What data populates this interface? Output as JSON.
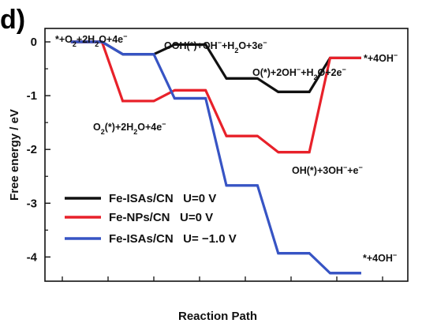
{
  "panel_label": "d)",
  "colors": {
    "black": "#111111",
    "red": "#e8212a",
    "blue": "#3754c4"
  },
  "chart_data": {
    "type": "line",
    "xlabel": "Reaction Path",
    "ylabel": "Free energy / eV",
    "ylim": [
      -4.45,
      0.25
    ],
    "xlim": [
      0,
      7.0
    ],
    "yticks": [
      "0",
      "-1",
      "-2",
      "-3",
      "-4"
    ],
    "ytick_values": [
      0,
      -1,
      -2,
      -3,
      -4
    ],
    "grid": false,
    "legend_position": "bottom-left",
    "series": [
      {
        "name": "Fe-ISAs/CN   U=0 V",
        "color": "#111111",
        "values": [
          0,
          -0.23,
          -0.05,
          -0.68,
          -0.93,
          -0.3
        ]
      },
      {
        "name": "Fe-NPs/CN   U=0 V",
        "color": "#e8212a",
        "values": [
          0,
          -1.1,
          -0.9,
          -1.75,
          -2.05,
          -0.3
        ]
      },
      {
        "name": "Fe-ISAs/CN   U= −1.0 V",
        "color": "#3754c4",
        "values": [
          0,
          -0.23,
          -1.05,
          -2.67,
          -3.93,
          -4.3
        ]
      }
    ],
    "annotations": [
      {
        "id": "a1",
        "parts": [
          [
            "*+O"
          ],
          [
            "2",
            "sub"
          ],
          [
            "+2H"
          ],
          [
            "2",
            "sub"
          ],
          [
            "O+4e"
          ],
          [
            "−",
            "sup"
          ]
        ]
      },
      {
        "id": "a2",
        "parts": [
          [
            "OOH(*)+OH"
          ],
          [
            "−",
            "sup"
          ],
          [
            "+H"
          ],
          [
            "2",
            "sub"
          ],
          [
            "O+3e"
          ],
          [
            "−",
            "sup"
          ]
        ]
      },
      {
        "id": "a3",
        "parts": [
          [
            "O(*)+2OH"
          ],
          [
            "−",
            "sup"
          ],
          [
            "+H"
          ],
          [
            "2",
            "sub"
          ],
          [
            "O+2e"
          ],
          [
            "−",
            "sup"
          ]
        ]
      },
      {
        "id": "a4",
        "parts": [
          [
            "*+4OH"
          ],
          [
            "−",
            "sup"
          ]
        ]
      },
      {
        "id": "a5",
        "parts": [
          [
            "O"
          ],
          [
            "2",
            "sub"
          ],
          [
            "(*)+2H"
          ],
          [
            "2",
            "sub"
          ],
          [
            "O+4e"
          ],
          [
            "−",
            "sup"
          ]
        ]
      },
      {
        "id": "a6",
        "parts": [
          [
            "OH(*)+3OH"
          ],
          [
            "−",
            "sup"
          ],
          [
            "+e"
          ],
          [
            "−",
            "sup"
          ]
        ]
      },
      {
        "id": "a7",
        "parts": [
          [
            "*+4OH"
          ],
          [
            "−",
            "sup"
          ]
        ]
      }
    ]
  }
}
